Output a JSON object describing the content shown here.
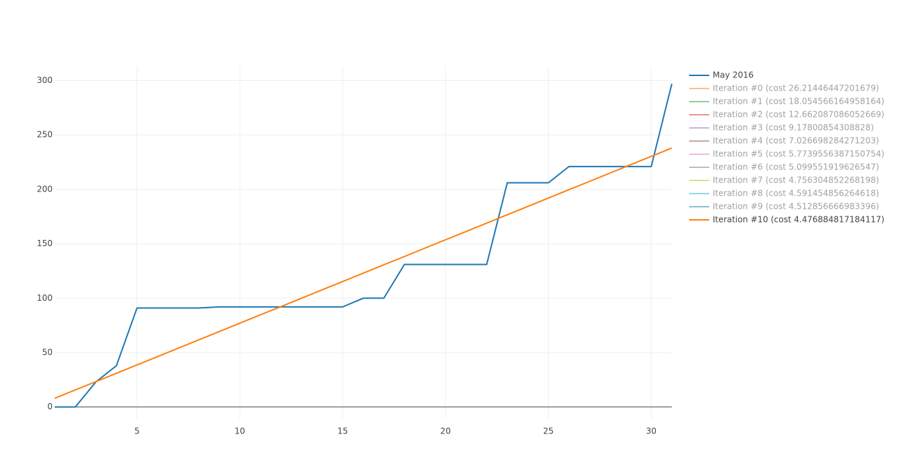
{
  "chart_data": {
    "type": "line",
    "x": [
      1,
      2,
      3,
      4,
      5,
      6,
      7,
      8,
      9,
      10,
      11,
      12,
      13,
      14,
      15,
      16,
      17,
      18,
      19,
      20,
      21,
      22,
      23,
      24,
      25,
      26,
      27,
      28,
      29,
      30,
      31
    ],
    "xlim": [
      1,
      31
    ],
    "xticks": [
      5,
      10,
      15,
      20,
      25,
      30
    ],
    "ylim": [
      -11,
      313
    ],
    "yticks": [
      0,
      50,
      100,
      150,
      200,
      250,
      300
    ],
    "grid": true,
    "legend": "right",
    "series": [
      {
        "name": "May 2016",
        "color": "#1f77b4",
        "visible": true,
        "values": [
          0,
          0,
          23,
          38,
          91,
          91,
          91,
          91,
          92,
          92,
          92,
          92,
          92,
          92,
          92,
          100,
          100,
          131,
          131,
          131,
          131,
          131,
          206,
          206,
          206,
          221,
          221,
          221,
          221,
          221,
          297
        ]
      },
      {
        "name": "Iteration #0 (cost 26.21446447201679)",
        "color": "#ff7f0e",
        "visible": false
      },
      {
        "name": "Iteration #1 (cost 18.054566164958164)",
        "color": "#2ca02c",
        "visible": false
      },
      {
        "name": "Iteration #2 (cost 12.662087086052669)",
        "color": "#d62728",
        "visible": false
      },
      {
        "name": "Iteration #3 (cost 9.17800854308828)",
        "color": "#9467bd",
        "visible": false
      },
      {
        "name": "Iteration #4 (cost 7.026698284271203)",
        "color": "#8c564b",
        "visible": false
      },
      {
        "name": "Iteration #5 (cost 5.7739556387150754)",
        "color": "#e377c2",
        "visible": false
      },
      {
        "name": "Iteration #6 (cost 5.099551919626547)",
        "color": "#7f7f7f",
        "visible": false
      },
      {
        "name": "Iteration #7 (cost 4.756304852268198)",
        "color": "#bcbd22",
        "visible": false
      },
      {
        "name": "Iteration #8 (cost 4.591454856264618)",
        "color": "#17becf",
        "visible": false
      },
      {
        "name": "Iteration #9 (cost 4.512856666983396)",
        "color": "#1f77b4",
        "visible": false
      },
      {
        "name": "Iteration #10 (cost 4.476884817184117)",
        "color": "#ff7f0e",
        "visible": true,
        "values": [
          8,
          15.7,
          23.3,
          31,
          38.7,
          46.3,
          54,
          61.7,
          69.3,
          77,
          84.7,
          92.3,
          100,
          107.7,
          115.3,
          123,
          130.7,
          138.3,
          146,
          153.7,
          161.3,
          169,
          176.7,
          184.3,
          192,
          199.7,
          207.3,
          215,
          222.7,
          230.3,
          238
        ]
      }
    ]
  }
}
